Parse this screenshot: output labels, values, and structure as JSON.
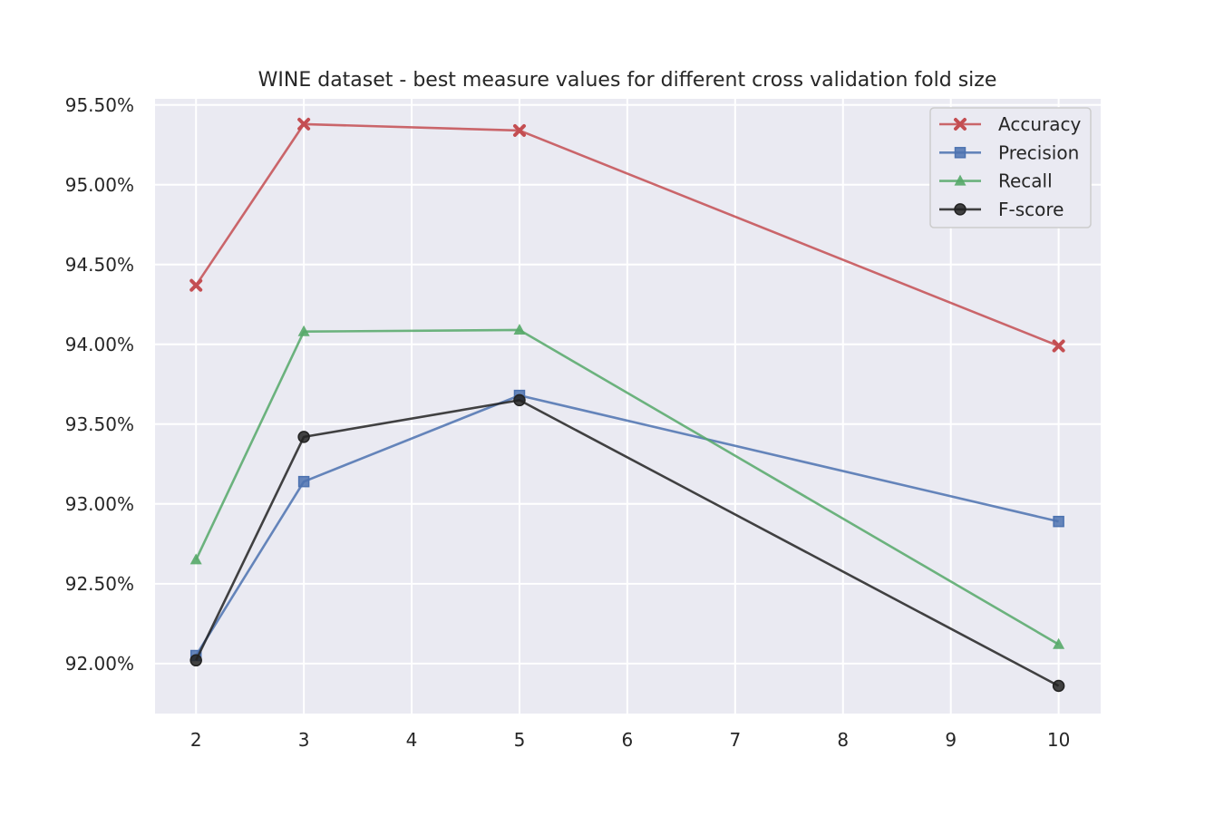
{
  "chart_data": {
    "type": "line",
    "title": "WINE dataset - best measure values for different cross validation fold size",
    "xlabel": "",
    "ylabel": "",
    "x": [
      2,
      3,
      5,
      10
    ],
    "xlim": [
      1.62,
      10.39
    ],
    "ylim": [
      91.6865,
      95.5385
    ],
    "x_ticks": [
      2,
      3,
      4,
      5,
      6,
      7,
      8,
      9,
      10
    ],
    "x_tick_labels": [
      "2",
      "3",
      "4",
      "5",
      "6",
      "7",
      "8",
      "9",
      "10"
    ],
    "y_ticks": [
      92.0,
      92.5,
      93.0,
      93.5,
      94.0,
      94.5,
      95.0,
      95.5
    ],
    "y_tick_labels": [
      "92.00%",
      "92.50%",
      "93.00%",
      "93.50%",
      "94.00%",
      "94.50%",
      "95.00%",
      "95.50%"
    ],
    "grid": true,
    "legend_position": "top-right",
    "series": [
      {
        "name": "Accuracy",
        "color": "#c44e52",
        "marker": "x-filled",
        "values": [
          94.37,
          95.38,
          95.34,
          93.99
        ]
      },
      {
        "name": "Precision",
        "color": "#4c72b0",
        "marker": "square",
        "values": [
          92.05,
          93.14,
          93.68,
          92.89
        ]
      },
      {
        "name": "Recall",
        "color": "#55a868",
        "marker": "triangle",
        "values": [
          92.65,
          94.08,
          94.09,
          92.12
        ]
      },
      {
        "name": "F-score",
        "color": "#222222",
        "marker": "circle",
        "values": [
          92.02,
          93.42,
          93.65,
          91.86
        ]
      }
    ]
  }
}
